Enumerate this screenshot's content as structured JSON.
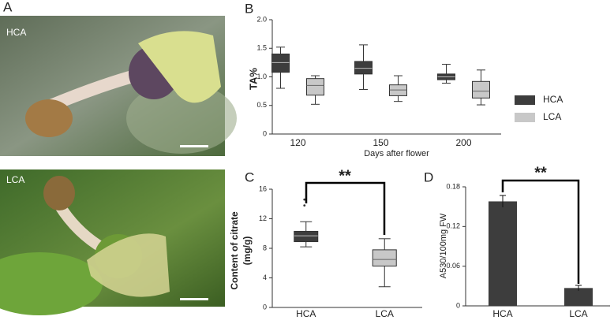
{
  "photo_panel": {
    "label": "A",
    "photos": [
      "HCA",
      "LCA"
    ]
  },
  "chart_data": [
    {
      "type": "box",
      "panel_label": "B",
      "ylabel": "TA%",
      "xlabel": "Days after flower",
      "categories": [
        "120",
        "150",
        "200"
      ],
      "ylim": [
        0,
        2
      ],
      "yticks": [
        0,
        0.5,
        {
          "value": 1,
          "label": "1.0"
        },
        1.5,
        {
          "value": 2,
          "label": "2.0"
        }
      ],
      "legend": "right",
      "series": [
        {
          "name": "HCA",
          "color": "#3d3d3d",
          "boxes": [
            {
              "min": 0.8,
              "q1": 1.08,
              "median": 1.25,
              "q3": 1.4,
              "max": 1.52
            },
            {
              "min": 0.78,
              "q1": 1.05,
              "median": 1.15,
              "q3": 1.27,
              "max": 1.56
            },
            {
              "min": 0.89,
              "q1": 0.95,
              "median": 1.0,
              "q3": 1.05,
              "max": 1.22
            }
          ]
        },
        {
          "name": "LCA",
          "color": "#c8c8c8",
          "boxes": [
            {
              "min": 0.52,
              "q1": 0.68,
              "median": 0.85,
              "q3": 0.97,
              "max": 1.02
            },
            {
              "min": 0.57,
              "q1": 0.67,
              "median": 0.77,
              "q3": 0.86,
              "max": 1.02
            },
            {
              "min": 0.51,
              "q1": 0.63,
              "median": 0.75,
              "q3": 0.92,
              "max": 1.12
            }
          ]
        }
      ]
    },
    {
      "type": "box",
      "panel_label": "C",
      "ylabel": [
        "Content of citrate",
        "(mg/g)"
      ],
      "categories": [
        "HCA",
        "LCA"
      ],
      "ylim": [
        0,
        16
      ],
      "yticks": [
        0,
        4,
        8,
        12,
        16
      ],
      "annotation": "**",
      "series": [
        {
          "color": "#3d3d3d",
          "boxes": [
            {
              "min": 8.2,
              "q1": 8.9,
              "median": 9.7,
              "q3": 10.3,
              "max": 11.6,
              "outliers": [
                13.8,
                14.6
              ]
            },
            null
          ]
        },
        {
          "color": "#c8c8c8",
          "boxes": [
            null,
            {
              "min": 2.8,
              "q1": 5.6,
              "median": 6.5,
              "q3": 7.8,
              "max": 9.3
            }
          ]
        }
      ]
    },
    {
      "type": "bar",
      "panel_label": "D",
      "ylabel": "A530/100mg FW",
      "categories": [
        "HCA",
        "LCA"
      ],
      "ylim": [
        0,
        0.18
      ],
      "yticks": [
        0,
        0.06,
        0.12,
        0.18
      ],
      "annotation": "**",
      "color": "#3d3d3d",
      "values": [
        0.158,
        0.027
      ],
      "errors": [
        0.009,
        0.004
      ]
    }
  ]
}
